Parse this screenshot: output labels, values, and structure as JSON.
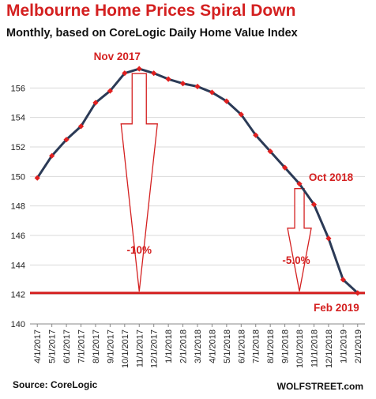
{
  "header": {
    "title": "Melbourne Home Prices Spiral Down",
    "subtitle": "Monthly, based on CoreLogic Daily Home Value Index"
  },
  "footer": {
    "source": "Source: CoreLogic",
    "brand": "WOLFSTREET.com"
  },
  "colors": {
    "line": "#2b3a56",
    "marker": "#e02020",
    "accent": "#d42020",
    "grid": "#d9d9d9"
  },
  "chart_data": {
    "type": "line",
    "title": "Melbourne Home Prices Spiral Down",
    "subtitle": "Monthly, based on CoreLogic Daily Home Value Index",
    "xlabel": "",
    "ylabel": "",
    "ylim": [
      140,
      158
    ],
    "yticks": [
      140,
      142,
      144,
      146,
      148,
      150,
      152,
      154,
      156
    ],
    "grid": true,
    "categories": [
      "4/1/2017",
      "5/1/2017",
      "6/1/2017",
      "7/1/2017",
      "8/1/2017",
      "9/1/2017",
      "10/1/2017",
      "11/1/2017",
      "12/1/2017",
      "1/1/2018",
      "2/1/2018",
      "3/1/2018",
      "4/1/2018",
      "5/1/2018",
      "6/1/2018",
      "7/1/2018",
      "8/1/2018",
      "9/1/2018",
      "10/1/2018",
      "11/1/2018",
      "12/1/2018",
      "1/1/2019",
      "2/1/2019"
    ],
    "series": [
      {
        "values": [
          149.9,
          151.4,
          152.5,
          153.4,
          155.0,
          155.8,
          157.0,
          157.3,
          157.0,
          156.6,
          156.3,
          156.1,
          155.7,
          155.1,
          154.2,
          152.8,
          151.7,
          150.6,
          149.5,
          148.1,
          145.8,
          143.0,
          142.1
        ]
      }
    ],
    "reference_line": {
      "value": 142.1
    },
    "annotations": [
      {
        "text": "Nov 2017",
        "category": "11/1/2017"
      },
      {
        "text": "Oct 2018",
        "category": "10/1/2018"
      },
      {
        "text": "Feb 2019",
        "category": "2/1/2019"
      },
      {
        "text": "-10%",
        "category": "11/1/2017"
      },
      {
        "text": "-5.0%",
        "category": "10/1/2018"
      }
    ]
  }
}
